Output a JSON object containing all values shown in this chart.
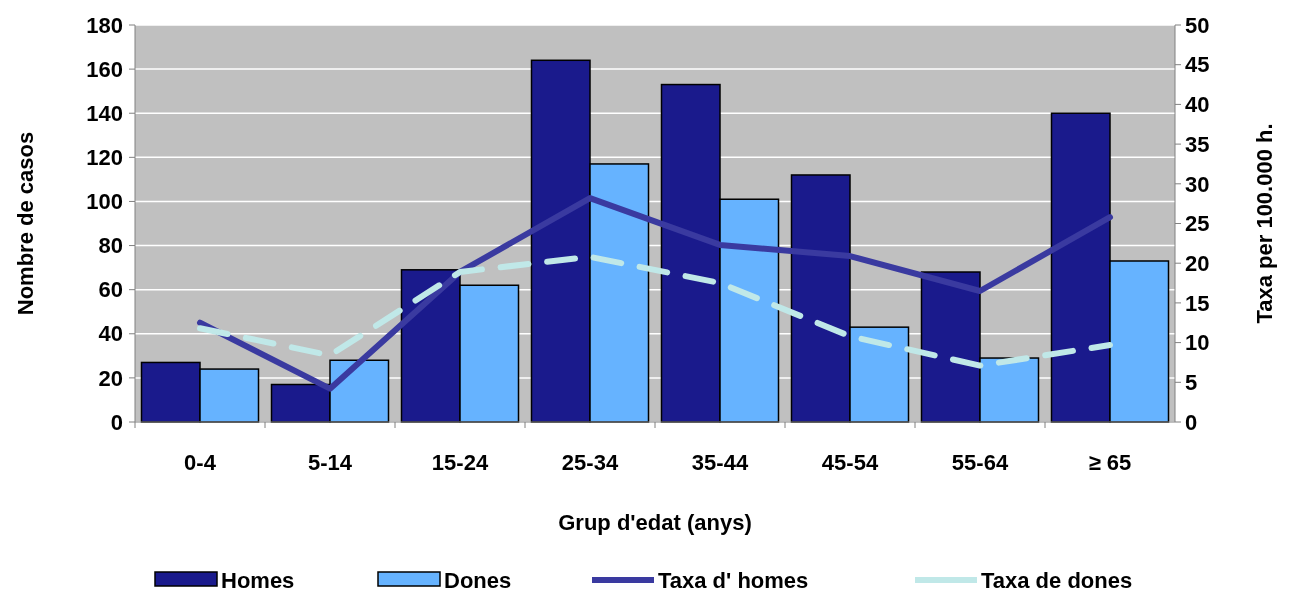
{
  "chart_data": {
    "type": "bar",
    "xlabel": "Grup d'edat (anys)",
    "ylabel": "Nombre de casos",
    "y2label": "Taxa per 100.000 h.",
    "categories": [
      "0-4",
      "5-14",
      "15-24",
      "25-34",
      "35-44",
      "45-54",
      "55-64",
      "≥ 65"
    ],
    "series": [
      {
        "name": "Homes",
        "color": "#1a1a8c",
        "values": [
          27,
          17,
          69,
          164,
          153,
          112,
          68,
          140
        ]
      },
      {
        "name": "Dones",
        "color": "#66b3ff",
        "values": [
          24,
          28,
          62,
          117,
          101,
          43,
          29,
          73
        ]
      },
      {
        "name": "Taxa d' homes",
        "type": "line",
        "axis": "y2",
        "color": "#3a3aa0",
        "line_style": "solid",
        "values": [
          12.5,
          4.2,
          18.9,
          28.2,
          22.3,
          20.9,
          16.5,
          25.8
        ]
      },
      {
        "name": "Taxa de dones",
        "type": "line",
        "axis": "y2",
        "color": "#c0e8e8",
        "line_style": "dashed",
        "values": [
          11.8,
          8.4,
          18.9,
          20.8,
          17.5,
          10.8,
          7.1,
          9.7
        ]
      }
    ],
    "ylim": [
      0,
      180
    ],
    "yticks": [
      0,
      20,
      40,
      60,
      80,
      100,
      120,
      140,
      160,
      180
    ],
    "y2lim": [
      0,
      50
    ],
    "y2ticks": [
      0,
      5,
      10,
      15,
      20,
      25,
      30,
      35,
      40,
      45,
      50
    ],
    "grid": "y",
    "legend": "bottom"
  }
}
